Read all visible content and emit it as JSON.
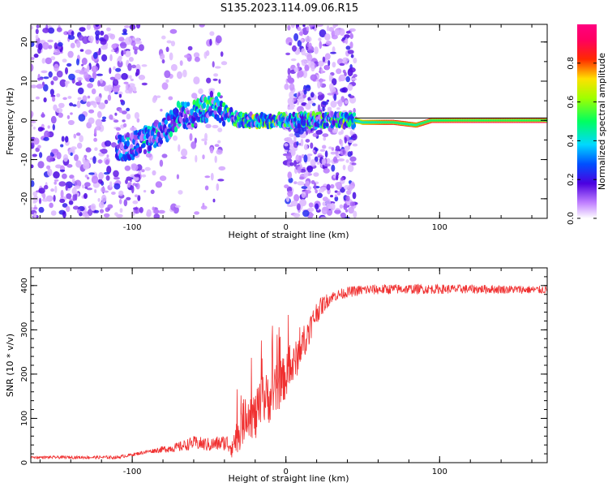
{
  "title": "S135.2023.114.09.06.R15",
  "chart_data": [
    {
      "type": "heatmap",
      "xlabel": "Height of straight line (km)",
      "ylabel": "Frequency (Hz)",
      "xlim": [
        -166,
        170
      ],
      "ylim": [
        -25,
        24.5
      ],
      "x_ticks": [
        -100,
        0,
        100
      ],
      "y_ticks": [
        -20,
        -10,
        0,
        10,
        20
      ],
      "colorbar": {
        "label": "Normalized spectral amplitude",
        "range": [
          0,
          1
        ],
        "ticks": [
          0.0,
          0.2,
          0.4,
          0.6,
          0.8
        ],
        "colormap": "white-purple-blue-cyan-green-yellow-red-magenta"
      },
      "noise_columns": [
        {
          "x_range": [
            -166,
            -95
          ],
          "density": "high"
        },
        {
          "x_range": [
            -95,
            -40
          ],
          "density": "low"
        },
        {
          "x_range": [
            0,
            45
          ],
          "density": "high"
        }
      ],
      "signal_track": [
        {
          "x": -110,
          "freq": -7,
          "amp": 0.3
        },
        {
          "x": -100,
          "freq": -6.5,
          "amp": 0.35
        },
        {
          "x": -90,
          "freq": -5,
          "amp": 0.4
        },
        {
          "x": -80,
          "freq": -3,
          "amp": 0.35
        },
        {
          "x": -70,
          "freq": 1,
          "amp": 0.4
        },
        {
          "x": -60,
          "freq": 1.5,
          "amp": 0.45
        },
        {
          "x": -50,
          "freq": 3.5,
          "amp": 0.45
        },
        {
          "x": -45,
          "freq": 4,
          "amp": 0.5
        },
        {
          "x": -40,
          "freq": 2,
          "amp": 0.45
        },
        {
          "x": -30,
          "freq": 0,
          "amp": 0.55
        },
        {
          "x": -20,
          "freq": 0,
          "amp": 0.6
        },
        {
          "x": -10,
          "freq": 0,
          "amp": 0.6
        },
        {
          "x": 0,
          "freq": 0,
          "amp": 0.55
        },
        {
          "x": 20,
          "freq": 0,
          "amp": 0.5
        },
        {
          "x": 45,
          "freq": 0,
          "amp": 0.6
        },
        {
          "x": 50,
          "freq": -0.5,
          "amp": 0.75
        },
        {
          "x": 70,
          "freq": -0.5,
          "amp": 0.85
        },
        {
          "x": 85,
          "freq": -1.2,
          "amp": 0.8
        },
        {
          "x": 95,
          "freq": 0,
          "amp": 0.88
        },
        {
          "x": 120,
          "freq": 0,
          "amp": 0.92
        },
        {
          "x": 150,
          "freq": 0,
          "amp": 0.92
        },
        {
          "x": 170,
          "freq": 0,
          "amp": 0.92
        }
      ]
    },
    {
      "type": "line",
      "xlabel": "Height of straight line (km)",
      "ylabel": "SNR (10 * v/v)",
      "xlim": [
        -166,
        170
      ],
      "ylim": [
        0,
        440
      ],
      "x_ticks": [
        -100,
        0,
        100
      ],
      "y_ticks": [
        0,
        100,
        200,
        300,
        400
      ],
      "series": [
        {
          "color": "#f03030",
          "envelope": [
            {
              "x": -166,
              "y": 12
            },
            {
              "x": -110,
              "y": 12
            },
            {
              "x": -100,
              "y": 18
            },
            {
              "x": -90,
              "y": 25
            },
            {
              "x": -80,
              "y": 30
            },
            {
              "x": -70,
              "y": 35
            },
            {
              "x": -60,
              "y": 45
            },
            {
              "x": -50,
              "y": 40
            },
            {
              "x": -40,
              "y": 45
            },
            {
              "x": -35,
              "y": 40
            },
            {
              "x": -30,
              "y": 70
            },
            {
              "x": -25,
              "y": 120
            },
            {
              "x": -20,
              "y": 100
            },
            {
              "x": -15,
              "y": 140
            },
            {
              "x": -10,
              "y": 150
            },
            {
              "x": -5,
              "y": 170
            },
            {
              "x": 0,
              "y": 195
            },
            {
              "x": 5,
              "y": 220
            },
            {
              "x": 10,
              "y": 260
            },
            {
              "x": 15,
              "y": 300
            },
            {
              "x": 20,
              "y": 340
            },
            {
              "x": 25,
              "y": 360
            },
            {
              "x": 30,
              "y": 375
            },
            {
              "x": 40,
              "y": 385
            },
            {
              "x": 50,
              "y": 390
            },
            {
              "x": 70,
              "y": 392
            },
            {
              "x": 100,
              "y": 392
            },
            {
              "x": 130,
              "y": 392
            },
            {
              "x": 170,
              "y": 390
            }
          ],
          "noise_amplitude": [
            {
              "x": -166,
              "a": 6
            },
            {
              "x": -90,
              "a": 8
            },
            {
              "x": -60,
              "a": 30
            },
            {
              "x": -40,
              "a": 35
            },
            {
              "x": -25,
              "a": 110
            },
            {
              "x": -10,
              "a": 120
            },
            {
              "x": 10,
              "a": 80
            },
            {
              "x": 30,
              "a": 25
            },
            {
              "x": 170,
              "a": 18
            }
          ]
        }
      ]
    }
  ]
}
